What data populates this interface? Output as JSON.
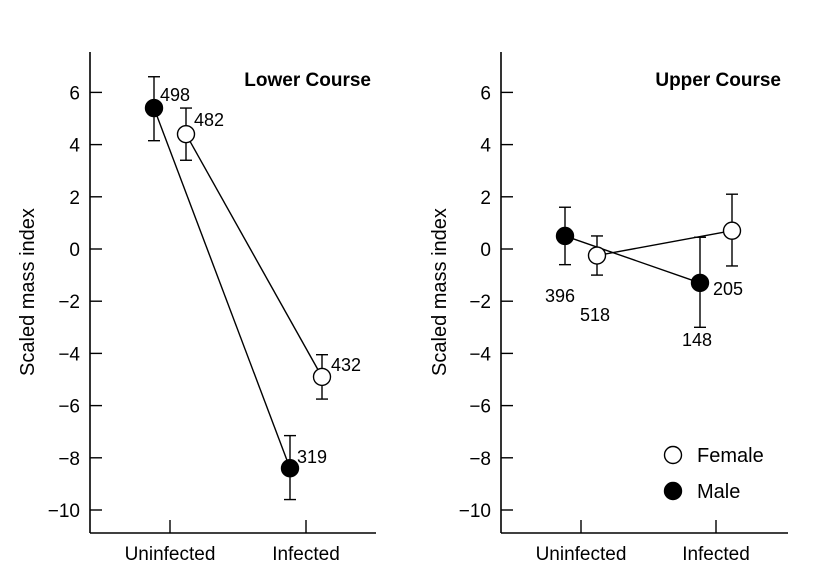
{
  "chart_data": [
    {
      "type": "line",
      "title": "Lower Course",
      "xlabel": "",
      "ylabel": "Scaled mass index",
      "ylim": [
        -11,
        7.5
      ],
      "yticks": [
        6,
        4,
        2,
        0,
        -2,
        -4,
        -6,
        -8,
        -10
      ],
      "ytick_labels": [
        "6",
        "4",
        "2",
        "0",
        "−2",
        "−4",
        "−6",
        "−8",
        "−10"
      ],
      "categories": [
        "Uninfected",
        "Infected"
      ],
      "series": [
        {
          "name": "Male",
          "values": [
            5.4,
            -8.4
          ],
          "err_low": [
            4.15,
            -9.6
          ],
          "err_high": [
            6.6,
            -7.15
          ],
          "n_labels": [
            "498",
            "319"
          ]
        },
        {
          "name": "Female",
          "values": [
            4.4,
            -4.9
          ],
          "err_low": [
            3.4,
            -5.75
          ],
          "err_high": [
            5.4,
            -4.05
          ],
          "n_labels": [
            "482",
            "432"
          ]
        }
      ]
    },
    {
      "type": "line",
      "title": "Upper Course",
      "xlabel": "",
      "ylabel": "Scaled mass index",
      "ylim": [
        -11,
        7.5
      ],
      "yticks": [
        6,
        4,
        2,
        0,
        -2,
        -4,
        -6,
        -8,
        -10
      ],
      "ytick_labels": [
        "6",
        "4",
        "2",
        "0",
        "−2",
        "−4",
        "−6",
        "−8",
        "−10"
      ],
      "categories": [
        "Uninfected",
        "Infected"
      ],
      "series": [
        {
          "name": "Male",
          "values": [
            0.5,
            -1.3
          ],
          "err_low": [
            -0.6,
            -3.0
          ],
          "err_high": [
            1.6,
            0.45
          ],
          "n_labels": [
            "396",
            "148"
          ]
        },
        {
          "name": "Female",
          "values": [
            -0.25,
            0.7
          ],
          "err_low": [
            -1.0,
            -0.65
          ],
          "err_high": [
            0.5,
            2.1
          ],
          "n_labels": [
            "518",
            "205"
          ]
        }
      ],
      "legend": {
        "position": "bottom-right",
        "entries": [
          "Female",
          "Male"
        ]
      }
    }
  ]
}
